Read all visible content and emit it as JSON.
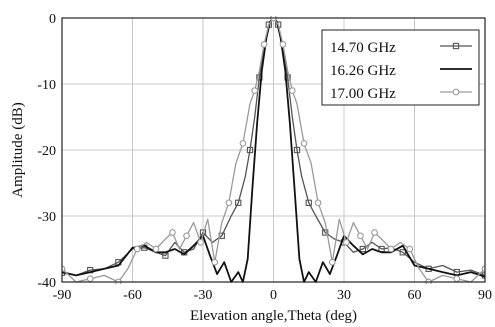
{
  "chart_data": {
    "type": "line",
    "title": "",
    "xlabel": "Elevation angle,Theta (deg)",
    "ylabel": "Amplitude (dB)",
    "xlim": [
      -90,
      90
    ],
    "ylim": [
      -40,
      0
    ],
    "xticks": [
      -90,
      -60,
      -30,
      0,
      30,
      60,
      90
    ],
    "yticks": [
      0,
      -10,
      -20,
      -30,
      -40
    ],
    "grid": true,
    "legend": "top-right",
    "series": [
      {
        "name": "14.70 GHz",
        "color": "#555555",
        "marker": "square",
        "x": [
          -90,
          -84,
          -78,
          -72,
          -66,
          -60,
          -55,
          -50,
          -46,
          -42,
          -38,
          -34,
          -30,
          -26,
          -22,
          -18,
          -15,
          -12,
          -10,
          -8,
          -6,
          -4,
          -2,
          0,
          2,
          4,
          6,
          8,
          10,
          12,
          15,
          18,
          22,
          26,
          30,
          34,
          38,
          42,
          46,
          50,
          55,
          60,
          66,
          72,
          78,
          84,
          90
        ],
        "y": [
          -38.6,
          -39,
          -38.2,
          -38,
          -37,
          -35,
          -34.8,
          -35.5,
          -36,
          -34,
          -35.5,
          -35,
          -32.5,
          -34,
          -33,
          -30,
          -28,
          -24,
          -20,
          -15,
          -9,
          -4.2,
          -1,
          0,
          -1,
          -4.2,
          -9,
          -15,
          -20,
          -24,
          -28,
          -30,
          -32.5,
          -33.5,
          -34,
          -35.5,
          -35,
          -34,
          -35,
          -34.8,
          -35.5,
          -37,
          -38,
          -37.5,
          -38.5,
          -38.2,
          -39
        ]
      },
      {
        "name": "16.26 GHz",
        "color": "#111111",
        "marker": "none",
        "x": [
          -90,
          -84,
          -78,
          -72,
          -66,
          -60,
          -55,
          -50,
          -46,
          -42,
          -38,
          -34,
          -30,
          -27,
          -24,
          -21,
          -18,
          -15,
          -13,
          -11,
          -9,
          -7,
          -5,
          -3,
          -1.5,
          0,
          1.5,
          3,
          5,
          7,
          9,
          11,
          13,
          15,
          18,
          21,
          24,
          27,
          30,
          34,
          38,
          42,
          46,
          50,
          55,
          60,
          66,
          72,
          78,
          84,
          90
        ],
        "y": [
          -38.5,
          -39,
          -38.5,
          -38,
          -37.5,
          -34.8,
          -34.5,
          -35.5,
          -35.5,
          -35,
          -35.8,
          -34.5,
          -33,
          -36,
          -38.8,
          -37,
          -40,
          -38.5,
          -40,
          -36.5,
          -26,
          -16,
          -8,
          -3,
          -0.6,
          0,
          -0.6,
          -3,
          -8,
          -16,
          -26,
          -36.5,
          -40,
          -38.5,
          -40,
          -37,
          -38.8,
          -36,
          -33,
          -34.5,
          -35.8,
          -35,
          -35.5,
          -35.5,
          -34.5,
          -37.5,
          -38,
          -38.5,
          -39,
          -38.5,
          -39.2
        ]
      },
      {
        "name": "17.00 GHz",
        "color": "#9a9a9a",
        "marker": "circle",
        "x": [
          -90,
          -84,
          -78,
          -72,
          -66,
          -62,
          -58,
          -54,
          -50,
          -46,
          -43,
          -40,
          -37,
          -34,
          -31,
          -28,
          -25,
          -22,
          -19,
          -16,
          -13,
          -10,
          -8,
          -6,
          -4,
          -2,
          0,
          2,
          4,
          6,
          8,
          10,
          13,
          16,
          19,
          22,
          25,
          28,
          31,
          34,
          37,
          40,
          43,
          46,
          50,
          54,
          58,
          62,
          66,
          72,
          78,
          84,
          90
        ],
        "y": [
          -38,
          -40,
          -39.5,
          -39,
          -40,
          -38,
          -35,
          -34,
          -35,
          -33.5,
          -32.5,
          -35,
          -33,
          -31,
          -34,
          -30.5,
          -37,
          -31,
          -28,
          -22,
          -19,
          -13,
          -11,
          -8,
          -4,
          -1,
          0,
          -1,
          -4,
          -8,
          -11,
          -13,
          -19,
          -22,
          -28,
          -31,
          -37,
          -30.5,
          -34,
          -31,
          -33,
          -35,
          -32.5,
          -33.5,
          -35,
          -34,
          -35,
          -38,
          -40,
          -39,
          -39.5,
          -40,
          -38
        ]
      }
    ]
  }
}
